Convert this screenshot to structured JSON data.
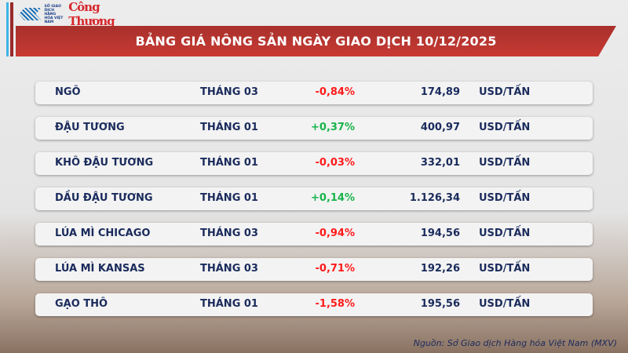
{
  "logo": {
    "exchange": "SỞ GIAO DỊCH HÀNG HÓA VIỆT NAM",
    "brand": "Công Thương"
  },
  "title": "BẢNG GIÁ NÔNG SẢN NGÀY GIAO DỊCH 10/12/2025",
  "colors": {
    "negative": "#ff1a1a",
    "positive": "#17b34a",
    "header": "#b8342f",
    "text": "#1a2b5c"
  },
  "rows": [
    {
      "name": "NGÔ",
      "month": "THÁNG 03",
      "change": "-0,84%",
      "price": "174,89",
      "unit": "USD/TẤN"
    },
    {
      "name": "ĐẬU TƯƠNG",
      "month": "THÁNG 01",
      "change": "+0,37%",
      "price": "400,97",
      "unit": "USD/TẤN"
    },
    {
      "name": "KHÔ ĐẬU TƯƠNG",
      "month": "THÁNG 01",
      "change": "-0,03%",
      "price": "332,01",
      "unit": "USD/TẤN"
    },
    {
      "name": "DẦU ĐẬU TƯƠNG",
      "month": "THÁNG 01",
      "change": "+0,14%",
      "price": "1.126,34",
      "unit": "USD/TẤN"
    },
    {
      "name": "LÚA MÌ CHICAGO",
      "month": "THÁNG 03",
      "change": "-0,94%",
      "price": "194,56",
      "unit": "USD/TẤN"
    },
    {
      "name": "LÚA MÌ KANSAS",
      "month": "THÁNG 03",
      "change": "-0,71%",
      "price": "192,26",
      "unit": "USD/TẤN"
    },
    {
      "name": "GẠO THÔ",
      "month": "THÁNG 01",
      "change": "-1,58%",
      "price": "195,56",
      "unit": "USD/TẤN"
    }
  ],
  "source": "Nguồn: Sở Giao dịch Hàng hóa Việt Nam (MXV)"
}
